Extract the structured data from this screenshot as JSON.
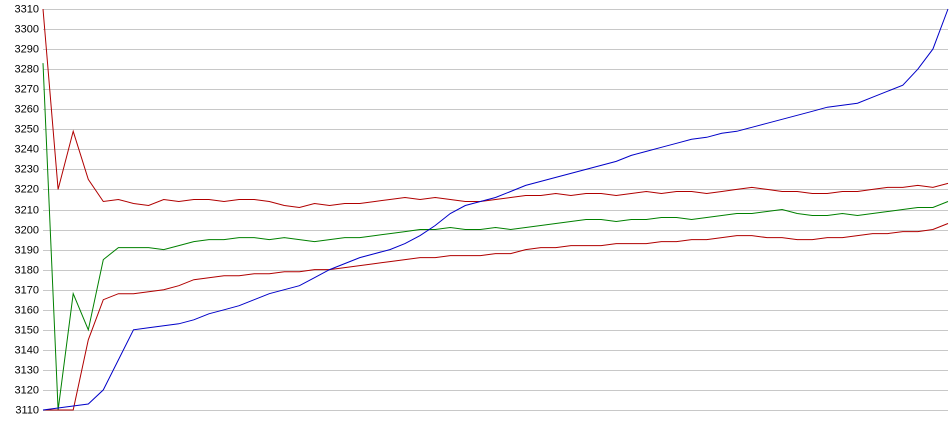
{
  "chart_data": {
    "type": "line",
    "ylim": [
      3110,
      3310
    ],
    "yticks": [
      3110,
      3120,
      3130,
      3140,
      3150,
      3160,
      3170,
      3180,
      3190,
      3200,
      3210,
      3220,
      3230,
      3240,
      3250,
      3260,
      3270,
      3280,
      3290,
      3300,
      3310
    ],
    "grid": true,
    "series": [
      {
        "color": "#b00000",
        "values": [
          3310,
          3220,
          3249,
          3225,
          3214,
          3215,
          3213,
          3212,
          3215,
          3214,
          3215,
          3215,
          3214,
          3215,
          3215,
          3214,
          3212,
          3211,
          3213,
          3212,
          3213,
          3213,
          3214,
          3215,
          3216,
          3215,
          3216,
          3215,
          3214,
          3214,
          3215,
          3216,
          3217,
          3217,
          3218,
          3217,
          3218,
          3218,
          3217,
          3218,
          3219,
          3218,
          3219,
          3219,
          3218,
          3219,
          3220,
          3221,
          3220,
          3219,
          3219,
          3218,
          3218,
          3219,
          3219,
          3220,
          3221,
          3221,
          3222,
          3221,
          3223
        ]
      },
      {
        "color": "#008000",
        "values": [
          3283,
          3110,
          3168,
          3150,
          3185,
          3191,
          3191,
          3191,
          3190,
          3192,
          3194,
          3195,
          3195,
          3196,
          3196,
          3195,
          3196,
          3195,
          3194,
          3195,
          3196,
          3196,
          3197,
          3198,
          3199,
          3200,
          3200,
          3201,
          3200,
          3200,
          3201,
          3200,
          3201,
          3202,
          3203,
          3204,
          3205,
          3205,
          3204,
          3205,
          3205,
          3206,
          3206,
          3205,
          3206,
          3207,
          3208,
          3208,
          3209,
          3210,
          3208,
          3207,
          3207,
          3208,
          3207,
          3208,
          3209,
          3210,
          3211,
          3211,
          3214
        ]
      },
      {
        "color": "#b00000",
        "values": [
          3110,
          3110,
          3110,
          3145,
          3165,
          3168,
          3168,
          3169,
          3170,
          3172,
          3175,
          3176,
          3177,
          3177,
          3178,
          3178,
          3179,
          3179,
          3180,
          3180,
          3181,
          3182,
          3183,
          3184,
          3185,
          3186,
          3186,
          3187,
          3187,
          3187,
          3188,
          3188,
          3190,
          3191,
          3191,
          3192,
          3192,
          3192,
          3193,
          3193,
          3193,
          3194,
          3194,
          3195,
          3195,
          3196,
          3197,
          3197,
          3196,
          3196,
          3195,
          3195,
          3196,
          3196,
          3197,
          3198,
          3198,
          3199,
          3199,
          3200,
          3203
        ]
      },
      {
        "color": "#0000c8",
        "values": [
          3110,
          3111,
          3112,
          3113,
          3120,
          3135,
          3150,
          3151,
          3152,
          3153,
          3155,
          3158,
          3160,
          3162,
          3165,
          3168,
          3170,
          3172,
          3176,
          3180,
          3183,
          3186,
          3188,
          3190,
          3193,
          3197,
          3202,
          3208,
          3212,
          3214,
          3216,
          3219,
          3222,
          3224,
          3226,
          3228,
          3230,
          3232,
          3234,
          3237,
          3239,
          3241,
          3243,
          3245,
          3246,
          3248,
          3249,
          3251,
          3253,
          3255,
          3257,
          3259,
          3261,
          3262,
          3263,
          3266,
          3269,
          3272,
          3280,
          3290,
          3310
        ]
      }
    ]
  }
}
